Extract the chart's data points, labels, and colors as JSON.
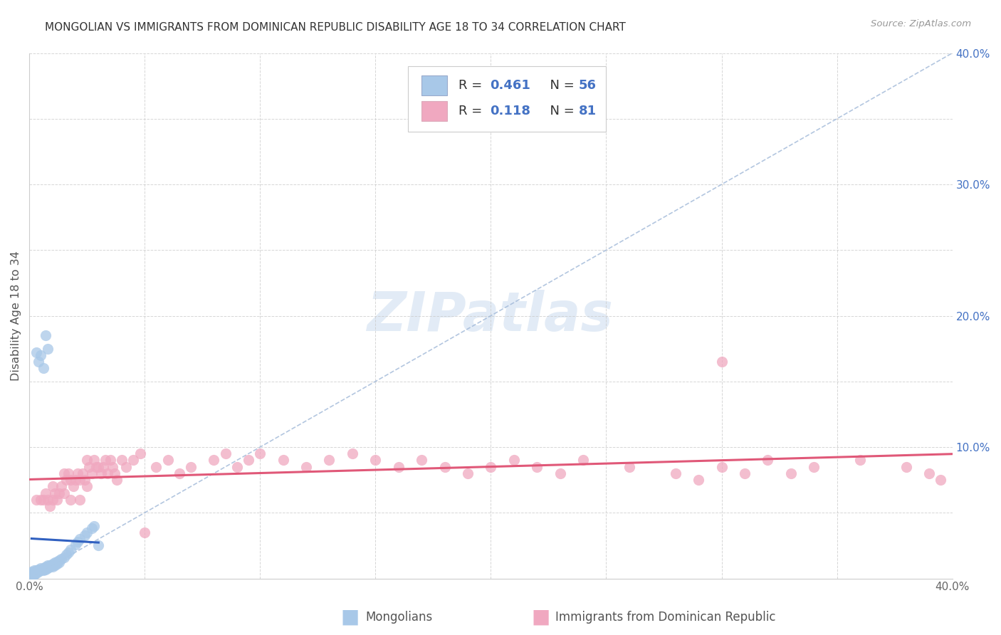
{
  "title": "MONGOLIAN VS IMMIGRANTS FROM DOMINICAN REPUBLIC DISABILITY AGE 18 TO 34 CORRELATION CHART",
  "source": "Source: ZipAtlas.com",
  "ylabel": "Disability Age 18 to 34",
  "xlim": [
    0.0,
    0.4
  ],
  "ylim": [
    0.0,
    0.4
  ],
  "xticks": [
    0.0,
    0.05,
    0.1,
    0.15,
    0.2,
    0.25,
    0.3,
    0.35,
    0.4
  ],
  "yticks": [
    0.0,
    0.05,
    0.1,
    0.15,
    0.2,
    0.25,
    0.3,
    0.35,
    0.4
  ],
  "xticklabels": [
    "0.0%",
    "",
    "",
    "",
    "",
    "",
    "",
    "",
    "40.0%"
  ],
  "yticklabels": [
    "",
    "",
    "10.0%",
    "",
    "20.0%",
    "",
    "30.0%",
    "",
    "40.0%"
  ],
  "legend_r1": "0.461",
  "legend_n1": "56",
  "legend_r2": "0.118",
  "legend_n2": "81",
  "color_mongolian": "#a8c8e8",
  "color_dominican": "#f0a8c0",
  "color_line_mongolian": "#3060c0",
  "color_line_dominican": "#e05878",
  "color_diag": "#a0b8d8",
  "watermark_color": "#d0dff0",
  "mongolian_x": [
    0.001,
    0.001,
    0.002,
    0.002,
    0.002,
    0.003,
    0.003,
    0.003,
    0.004,
    0.004,
    0.004,
    0.005,
    0.005,
    0.005,
    0.006,
    0.006,
    0.006,
    0.007,
    0.007,
    0.007,
    0.008,
    0.008,
    0.008,
    0.009,
    0.009,
    0.01,
    0.01,
    0.01,
    0.011,
    0.011,
    0.012,
    0.012,
    0.013,
    0.013,
    0.014,
    0.015,
    0.016,
    0.017,
    0.018,
    0.02,
    0.021,
    0.022,
    0.024,
    0.025,
    0.027,
    0.028,
    0.03,
    0.005,
    0.007,
    0.008,
    0.006,
    0.004,
    0.003,
    0.002,
    0.001,
    0.001
  ],
  "mongolian_y": [
    0.005,
    0.004,
    0.006,
    0.005,
    0.003,
    0.006,
    0.005,
    0.004,
    0.007,
    0.006,
    0.005,
    0.008,
    0.007,
    0.006,
    0.008,
    0.007,
    0.006,
    0.009,
    0.008,
    0.007,
    0.01,
    0.009,
    0.008,
    0.01,
    0.009,
    0.011,
    0.01,
    0.009,
    0.012,
    0.01,
    0.013,
    0.011,
    0.014,
    0.012,
    0.015,
    0.016,
    0.018,
    0.02,
    0.022,
    0.026,
    0.028,
    0.03,
    0.033,
    0.035,
    0.038,
    0.04,
    0.025,
    0.17,
    0.185,
    0.175,
    0.16,
    0.165,
    0.172,
    0.003,
    0.002,
    0.001
  ],
  "dominican_x": [
    0.003,
    0.005,
    0.006,
    0.007,
    0.008,
    0.009,
    0.01,
    0.01,
    0.011,
    0.012,
    0.013,
    0.014,
    0.015,
    0.015,
    0.016,
    0.017,
    0.018,
    0.018,
    0.019,
    0.02,
    0.021,
    0.022,
    0.022,
    0.023,
    0.024,
    0.025,
    0.025,
    0.026,
    0.027,
    0.028,
    0.029,
    0.03,
    0.031,
    0.032,
    0.033,
    0.034,
    0.035,
    0.036,
    0.037,
    0.038,
    0.04,
    0.042,
    0.045,
    0.048,
    0.05,
    0.055,
    0.06,
    0.065,
    0.07,
    0.08,
    0.085,
    0.09,
    0.095,
    0.1,
    0.11,
    0.12,
    0.13,
    0.14,
    0.15,
    0.16,
    0.17,
    0.18,
    0.19,
    0.2,
    0.21,
    0.22,
    0.23,
    0.24,
    0.26,
    0.28,
    0.29,
    0.3,
    0.31,
    0.32,
    0.33,
    0.34,
    0.36,
    0.38,
    0.39,
    0.395,
    0.3
  ],
  "dominican_y": [
    0.06,
    0.06,
    0.06,
    0.065,
    0.06,
    0.055,
    0.07,
    0.06,
    0.065,
    0.06,
    0.065,
    0.07,
    0.08,
    0.065,
    0.075,
    0.08,
    0.075,
    0.06,
    0.07,
    0.075,
    0.08,
    0.075,
    0.06,
    0.08,
    0.075,
    0.09,
    0.07,
    0.085,
    0.08,
    0.09,
    0.085,
    0.085,
    0.08,
    0.085,
    0.09,
    0.08,
    0.09,
    0.085,
    0.08,
    0.075,
    0.09,
    0.085,
    0.09,
    0.095,
    0.035,
    0.085,
    0.09,
    0.08,
    0.085,
    0.09,
    0.095,
    0.085,
    0.09,
    0.095,
    0.09,
    0.085,
    0.09,
    0.095,
    0.09,
    0.085,
    0.09,
    0.085,
    0.08,
    0.085,
    0.09,
    0.085,
    0.08,
    0.09,
    0.085,
    0.08,
    0.075,
    0.085,
    0.08,
    0.09,
    0.08,
    0.085,
    0.09,
    0.085,
    0.08,
    0.075,
    0.165
  ]
}
